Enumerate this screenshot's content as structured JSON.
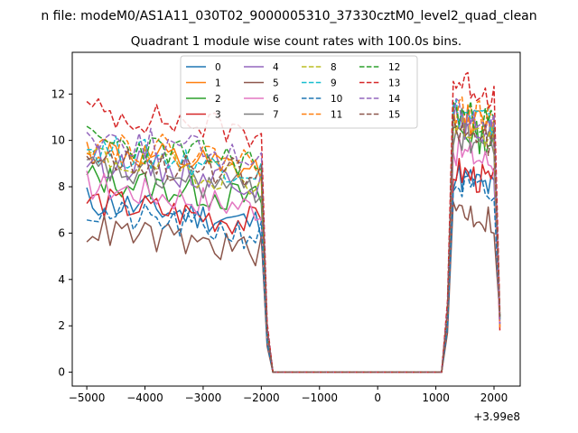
{
  "figure": {
    "suptitle": "n file: modeM0/AS1A11_030T02_9000005310_37330cztM0_level2_quad_clean",
    "title": "Quadrant 1 module wise count rates with 100.0s bins.",
    "offset_text": "+3.99e8"
  },
  "chart_data": {
    "type": "line",
    "title": "Quadrant 1 module wise count rates with 100.0s bins.",
    "suptitle": "n file: modeM0/AS1A11_030T02_9000005310_37330cztM0_level2_quad_clean",
    "xlabel": "",
    "ylabel": "",
    "x_offset": "+3.99e8",
    "xlim": [
      -5250,
      2450
    ],
    "ylim": [
      -0.6,
      13.8
    ],
    "xticks": [
      -5000,
      -4000,
      -3000,
      -2000,
      -1000,
      0,
      1000,
      2000
    ],
    "xtick_labels": [
      "−5000",
      "−4000",
      "−3000",
      "−2000",
      "−1000",
      "0",
      "1000",
      "2000"
    ],
    "yticks": [
      0,
      2,
      4,
      6,
      8,
      10,
      12
    ],
    "ytick_labels": [
      "0",
      "2",
      "4",
      "6",
      "8",
      "10",
      "12"
    ],
    "grid": false,
    "legend_location": "upper center",
    "legend_columns": 4,
    "segments": {
      "first_start": -5000,
      "first_drop_start": -2000,
      "zero_start": -1800,
      "zero_end": 1100,
      "second_peak_start": 1300,
      "second_end": 2100
    },
    "series": [
      {
        "name": "0",
        "color": "#1f77b4",
        "dash": "solid",
        "level1": 6.8,
        "level2": 8.2,
        "noise": 0.35,
        "seed": 11
      },
      {
        "name": "1",
        "color": "#ff7f0e",
        "dash": "solid",
        "level1": 9.0,
        "level2": 10.8,
        "noise": 0.35,
        "seed": 12
      },
      {
        "name": "2",
        "color": "#2ca02c",
        "dash": "solid",
        "level1": 7.8,
        "level2": 10.2,
        "noise": 0.35,
        "seed": 13
      },
      {
        "name": "3",
        "color": "#d62728",
        "dash": "solid",
        "level1": 6.8,
        "level2": 8.4,
        "noise": 0.35,
        "seed": 14
      },
      {
        "name": "4",
        "color": "#9467bd",
        "dash": "solid",
        "level1": 8.6,
        "level2": 10.6,
        "noise": 0.35,
        "seed": 15
      },
      {
        "name": "5",
        "color": "#8c564b",
        "dash": "solid",
        "level1": 5.6,
        "level2": 6.8,
        "noise": 0.35,
        "seed": 16
      },
      {
        "name": "6",
        "color": "#e377c2",
        "dash": "solid",
        "level1": 7.5,
        "level2": 9.3,
        "noise": 0.35,
        "seed": 17
      },
      {
        "name": "7",
        "color": "#7f7f7f",
        "dash": "solid",
        "level1": 8.2,
        "level2": 10.0,
        "noise": 0.35,
        "seed": 18
      },
      {
        "name": "8",
        "color": "#bcbd22",
        "dash": "dashed",
        "level1": 8.7,
        "level2": 10.4,
        "noise": 0.35,
        "seed": 19
      },
      {
        "name": "9",
        "color": "#17becf",
        "dash": "dashed",
        "level1": 9.1,
        "level2": 11.0,
        "noise": 0.35,
        "seed": 20
      },
      {
        "name": "10",
        "color": "#1f77b4",
        "dash": "dashed",
        "level1": 6.3,
        "level2": 7.8,
        "noise": 0.35,
        "seed": 21
      },
      {
        "name": "11",
        "color": "#ff7f0e",
        "dash": "dashed",
        "level1": 9.4,
        "level2": 11.1,
        "noise": 0.35,
        "seed": 22
      },
      {
        "name": "12",
        "color": "#2ca02c",
        "dash": "dashed",
        "level1": 9.4,
        "level2": 11.0,
        "noise": 0.35,
        "seed": 23
      },
      {
        "name": "13",
        "color": "#d62728",
        "dash": "dashed",
        "level1": 10.7,
        "level2": 12.3,
        "noise": 0.35,
        "seed": 24
      },
      {
        "name": "14",
        "color": "#9467bd",
        "dash": "dashed",
        "level1": 9.6,
        "level2": 11.0,
        "noise": 0.35,
        "seed": 25
      },
      {
        "name": "15",
        "color": "#8c564b",
        "dash": "dashed",
        "level1": 8.8,
        "level2": 10.2,
        "noise": 0.35,
        "seed": 26
      }
    ]
  }
}
